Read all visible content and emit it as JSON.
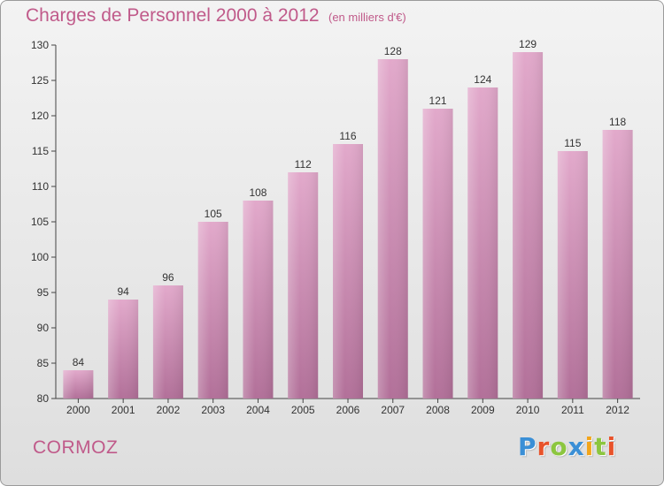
{
  "title": "Charges de Personnel 2000 à 2012",
  "subtitle": "(en milliers d'€)",
  "town": "CORMOZ",
  "logo": {
    "letters": [
      "P",
      "r",
      "o",
      "x",
      "i",
      "t",
      "i"
    ],
    "colors": [
      "#3a8fd6",
      "#e8532b",
      "#8cc63f",
      "#3a8fd6",
      "#f2a51a",
      "#8cc63f",
      "#e8532b"
    ]
  },
  "colors": {
    "bar_top": "#e2a9cb",
    "bar_bottom": "#b27099",
    "text": "#c05a8a",
    "axis": "#444444"
  },
  "chart_data": {
    "type": "bar",
    "categories": [
      "2000",
      "2001",
      "2002",
      "2003",
      "2004",
      "2005",
      "2006",
      "2007",
      "2008",
      "2009",
      "2010",
      "2011",
      "2012"
    ],
    "values": [
      84,
      94,
      96,
      105,
      108,
      112,
      116,
      128,
      121,
      124,
      129,
      115,
      118
    ],
    "ylim": [
      80,
      130
    ],
    "yticks": [
      80,
      85,
      90,
      95,
      100,
      105,
      110,
      115,
      120,
      125,
      130
    ],
    "grid": false,
    "data_labels": true
  }
}
